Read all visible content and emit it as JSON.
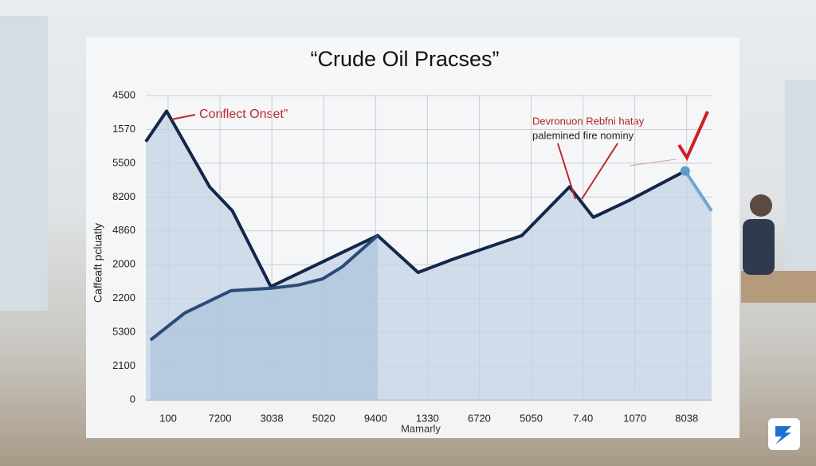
{
  "chart_data": {
    "type": "line",
    "title": "“Crude Oil Pracses”",
    "x_label": "Mamarly",
    "y_label": "Caffeaft pcluatly",
    "annotations": [
      "Conflect Onset”",
      "Devronuon Rebfni hatay",
      "palemined fire nominy"
    ],
    "xlim": [
      -0.43,
      10.48
    ],
    "xticks": [
      {
        "value": 0,
        "label": "100"
      },
      {
        "value": 1,
        "label": "7200"
      },
      {
        "value": 2,
        "label": "3038"
      },
      {
        "value": 3,
        "label": "5020"
      },
      {
        "value": 4,
        "label": "9400"
      },
      {
        "value": 5,
        "label": "1330"
      },
      {
        "value": 6,
        "label": "6720"
      },
      {
        "value": 7,
        "label": "5050"
      },
      {
        "value": 8,
        "label": "7.40"
      },
      {
        "value": 9,
        "label": "1070"
      },
      {
        "value": 10,
        "label": "8038"
      }
    ],
    "ylim": [
      0,
      9
    ],
    "yticks": [
      {
        "value": 0,
        "label": "0"
      },
      {
        "value": 1,
        "label": "2100"
      },
      {
        "value": 2,
        "label": "5300"
      },
      {
        "value": 3,
        "label": "2200"
      },
      {
        "value": 4,
        "label": "2000"
      },
      {
        "value": 5,
        "label": "4860"
      },
      {
        "value": 6,
        "label": "8200"
      },
      {
        "value": 7,
        "label": "5500"
      },
      {
        "value": 8,
        "label": "1570"
      },
      {
        "value": 9,
        "label": "4500"
      }
    ],
    "grid": true,
    "series": [
      {
        "color": "#14264a",
        "x": [
          -0.43,
          -0.03,
          0.8,
          1.24,
          1.98,
          4.04,
          4.82,
          5.51,
          6.82,
          7.74,
          8.2,
          8.89,
          9.97
        ],
        "values": [
          7.64,
          8.54,
          6.3,
          5.59,
          3.35,
          4.86,
          3.77,
          4.17,
          4.86,
          6.3,
          5.4,
          5.9,
          6.77
        ]
      },
      {
        "color": "#2a4a78",
        "x": [
          -0.34,
          0.32,
          1.21,
          1.98,
          2.52,
          2.98,
          3.36,
          4.04
        ],
        "values": [
          1.77,
          2.57,
          3.23,
          3.3,
          3.4,
          3.58,
          3.94,
          4.86
        ]
      },
      {
        "color": "#6ea6cf",
        "x": [
          9.97,
          10.48
        ],
        "values": [
          6.77,
          5.59
        ]
      }
    ]
  }
}
